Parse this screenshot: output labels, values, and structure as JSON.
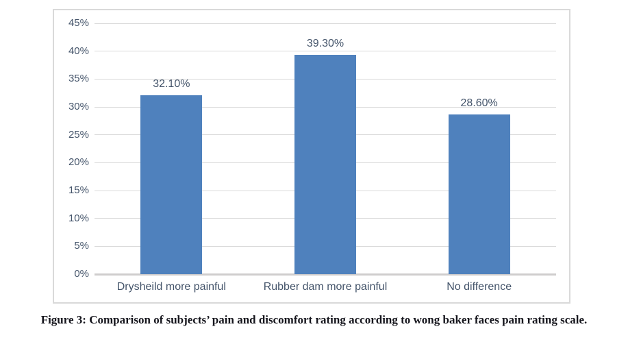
{
  "caption": "Figure 3: Comparison of subjects’ pain and discomfort rating according to wong baker faces pain rating scale.",
  "chart_data": {
    "type": "bar",
    "title": "",
    "xlabel": "",
    "ylabel": "",
    "categories": [
      "Drysheild more painful",
      "Rubber dam more painful",
      "No difference"
    ],
    "values": [
      32.1,
      39.3,
      28.6
    ],
    "data_labels": [
      "32.10%",
      "39.30%",
      "28.60%"
    ],
    "ylim": [
      0,
      45
    ],
    "ytick_step": 5,
    "ytick_labels": [
      "0%",
      "5%",
      "10%",
      "15%",
      "20%",
      "25%",
      "30%",
      "35%",
      "40%",
      "45%"
    ],
    "grid": true,
    "legend": "none",
    "colors": {
      "bar": "#4F81BD",
      "gridline": "#D9D9D9",
      "axis_line": "#CFCDCD",
      "frame_border": "#D9D9D9",
      "labels": "#44546A",
      "caption": "#15151C",
      "background": "#FFFFFF"
    }
  }
}
